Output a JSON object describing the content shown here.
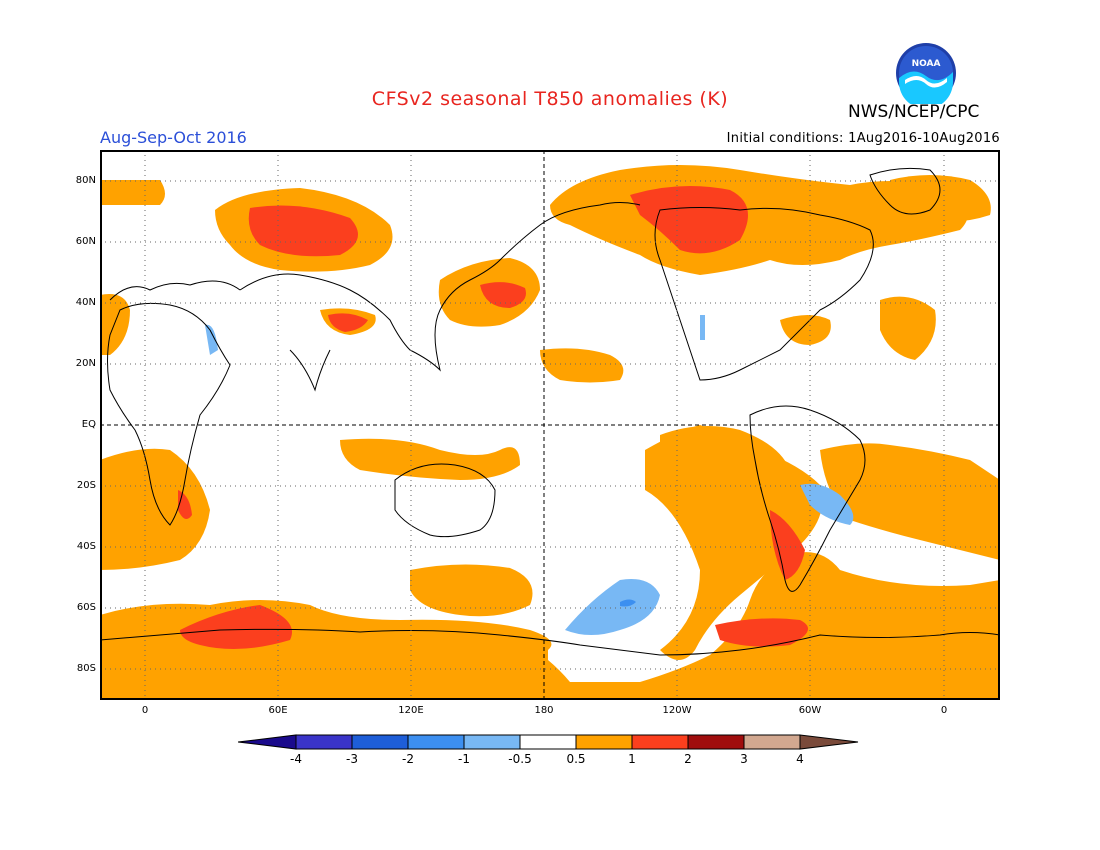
{
  "header": {
    "title": "CFSv2 seasonal T850 anomalies (K)",
    "organization": "NWS/NCEP/CPC",
    "period": "Aug-Sep-Oct 2016",
    "initial_conditions": "Initial conditions: 1Aug2016-10Aug2016",
    "logo_text": "NOAA"
  },
  "map": {
    "latitude_labels": [
      "80N",
      "60N",
      "40N",
      "20N",
      "EQ",
      "20S",
      "40S",
      "60S",
      "80S"
    ],
    "longitude_labels": [
      "0",
      "60E",
      "120E",
      "180",
      "120W",
      "60W",
      "0"
    ]
  },
  "colorbar": {
    "labels": [
      "-4",
      "-3",
      "-2",
      "-1",
      "-0.5",
      "0.5",
      "1",
      "2",
      "3",
      "4"
    ],
    "colors": {
      "below_min": "#1a0a8c",
      "-4_-3": "#3a34c8",
      "-3_-2": "#1e5ed8",
      "-2_-1": "#3c8ff0",
      "-1_-0.5": "#78b8f4",
      "-0.5_0.5": "#ffffff",
      "0.5_1": "#ffa200",
      "1_2": "#fb3f1e",
      "2_3": "#a00d0d",
      "3_4": "#d2a890",
      "above_max": "#7a4a3a"
    }
  }
}
